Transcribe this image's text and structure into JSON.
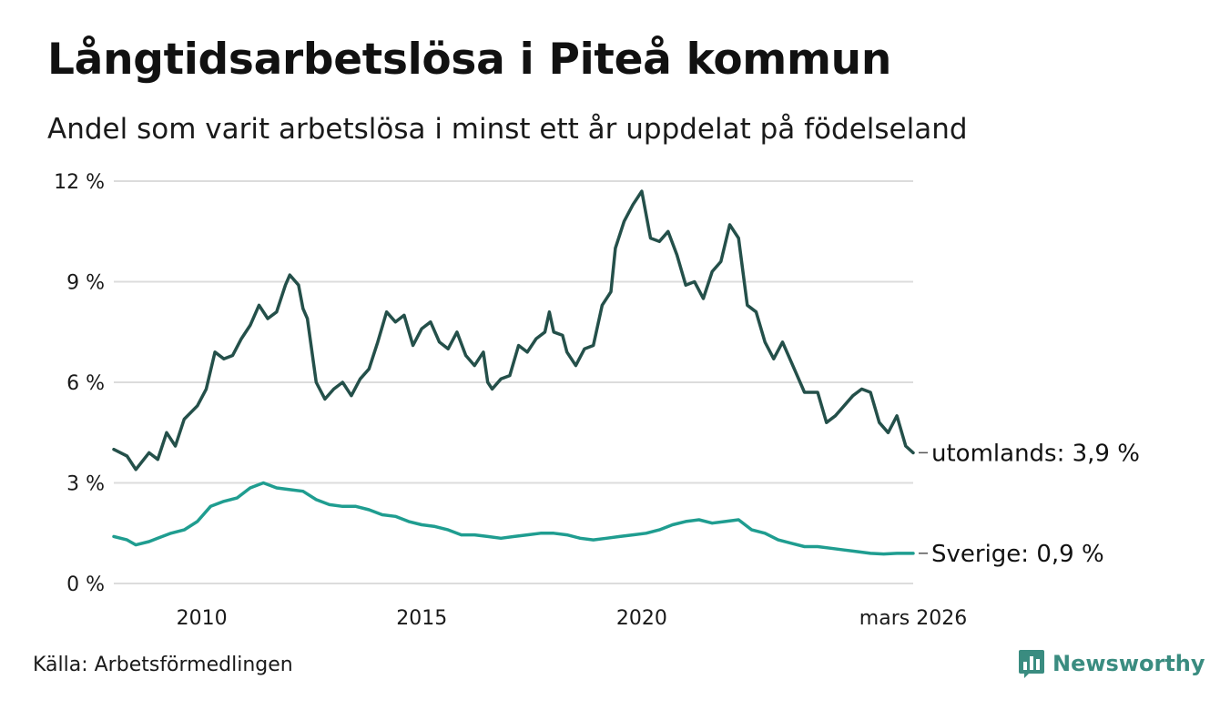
{
  "header": {
    "title": "Långtidsarbetslösa i Piteå kommun",
    "subtitle": "Andel som varit arbetslösa i minst ett år uppdelat på födelseland"
  },
  "footer": {
    "source": "Källa: Arbetsförmedlingen",
    "brand": "Newsworthy"
  },
  "colors": {
    "utomlands": "#24504a",
    "sverige": "#1f9d90",
    "grid": "#dcdcdc",
    "brand": "#3a8c80"
  },
  "chart_data": {
    "type": "line",
    "title": "Långtidsarbetslösa i Piteå kommun",
    "subtitle": "Andel som varit arbetslösa i minst ett år uppdelat på födelseland",
    "xlabel": "",
    "ylabel": "",
    "ylim": [
      0,
      12
    ],
    "xlim": [
      2008.0,
      2026.17
    ],
    "yticks": [
      0,
      3,
      6,
      9,
      12
    ],
    "ytick_labels": [
      "0 %",
      "3 %",
      "6 %",
      "9 %",
      "12 %"
    ],
    "xticks": [
      2010,
      2015,
      2020,
      2026.17
    ],
    "xtick_labels": [
      "2010",
      "2015",
      "2020",
      "mars 2026"
    ],
    "grid": true,
    "series": [
      {
        "name": "utomlands",
        "end_label": "utomlands: 3,9 %",
        "points": [
          [
            2008.0,
            4.0
          ],
          [
            2008.3,
            3.8
          ],
          [
            2008.5,
            3.4
          ],
          [
            2008.8,
            3.9
          ],
          [
            2009.0,
            3.7
          ],
          [
            2009.2,
            4.5
          ],
          [
            2009.4,
            4.1
          ],
          [
            2009.6,
            4.9
          ],
          [
            2009.9,
            5.3
          ],
          [
            2010.1,
            5.8
          ],
          [
            2010.3,
            6.9
          ],
          [
            2010.5,
            6.7
          ],
          [
            2010.7,
            6.8
          ],
          [
            2010.9,
            7.3
          ],
          [
            2011.1,
            7.7
          ],
          [
            2011.3,
            8.3
          ],
          [
            2011.5,
            7.9
          ],
          [
            2011.7,
            8.1
          ],
          [
            2011.9,
            8.9
          ],
          [
            2012.0,
            9.2
          ],
          [
            2012.2,
            8.9
          ],
          [
            2012.3,
            8.2
          ],
          [
            2012.4,
            7.9
          ],
          [
            2012.6,
            6.0
          ],
          [
            2012.8,
            5.5
          ],
          [
            2013.0,
            5.8
          ],
          [
            2013.2,
            6.0
          ],
          [
            2013.4,
            5.6
          ],
          [
            2013.6,
            6.1
          ],
          [
            2013.8,
            6.4
          ],
          [
            2014.0,
            7.2
          ],
          [
            2014.2,
            8.1
          ],
          [
            2014.4,
            7.8
          ],
          [
            2014.6,
            8.0
          ],
          [
            2014.8,
            7.1
          ],
          [
            2015.0,
            7.6
          ],
          [
            2015.2,
            7.8
          ],
          [
            2015.4,
            7.2
          ],
          [
            2015.6,
            7.0
          ],
          [
            2015.8,
            7.5
          ],
          [
            2016.0,
            6.8
          ],
          [
            2016.2,
            6.5
          ],
          [
            2016.4,
            6.9
          ],
          [
            2016.5,
            6.0
          ],
          [
            2016.6,
            5.8
          ],
          [
            2016.8,
            6.1
          ],
          [
            2017.0,
            6.2
          ],
          [
            2017.2,
            7.1
          ],
          [
            2017.4,
            6.9
          ],
          [
            2017.6,
            7.3
          ],
          [
            2017.8,
            7.5
          ],
          [
            2017.9,
            8.1
          ],
          [
            2018.0,
            7.5
          ],
          [
            2018.2,
            7.4
          ],
          [
            2018.3,
            6.9
          ],
          [
            2018.5,
            6.5
          ],
          [
            2018.7,
            7.0
          ],
          [
            2018.9,
            7.1
          ],
          [
            2019.1,
            8.3
          ],
          [
            2019.3,
            8.7
          ],
          [
            2019.4,
            10.0
          ],
          [
            2019.6,
            10.8
          ],
          [
            2019.8,
            11.3
          ],
          [
            2020.0,
            11.7
          ],
          [
            2020.2,
            10.3
          ],
          [
            2020.4,
            10.2
          ],
          [
            2020.6,
            10.5
          ],
          [
            2020.8,
            9.8
          ],
          [
            2021.0,
            8.9
          ],
          [
            2021.2,
            9.0
          ],
          [
            2021.4,
            8.5
          ],
          [
            2021.6,
            9.3
          ],
          [
            2021.8,
            9.6
          ],
          [
            2022.0,
            10.7
          ],
          [
            2022.2,
            10.3
          ],
          [
            2022.4,
            8.3
          ],
          [
            2022.6,
            8.1
          ],
          [
            2022.8,
            7.2
          ],
          [
            2023.0,
            6.7
          ],
          [
            2023.2,
            7.2
          ],
          [
            2023.5,
            6.3
          ],
          [
            2023.7,
            5.7
          ],
          [
            2024.0,
            5.7
          ],
          [
            2024.2,
            4.8
          ],
          [
            2024.4,
            5.0
          ],
          [
            2024.6,
            5.3
          ],
          [
            2024.8,
            5.6
          ],
          [
            2025.0,
            5.8
          ],
          [
            2025.2,
            5.7
          ],
          [
            2025.4,
            4.8
          ],
          [
            2025.6,
            4.5
          ],
          [
            2025.8,
            5.0
          ],
          [
            2026.0,
            4.1
          ],
          [
            2026.17,
            3.9
          ]
        ]
      },
      {
        "name": "Sverige",
        "end_label": "Sverige: 0,9 %",
        "points": [
          [
            2008.0,
            1.4
          ],
          [
            2008.3,
            1.3
          ],
          [
            2008.5,
            1.15
          ],
          [
            2008.8,
            1.25
          ],
          [
            2009.0,
            1.35
          ],
          [
            2009.3,
            1.5
          ],
          [
            2009.6,
            1.6
          ],
          [
            2009.9,
            1.85
          ],
          [
            2010.2,
            2.3
          ],
          [
            2010.5,
            2.45
          ],
          [
            2010.8,
            2.55
          ],
          [
            2011.1,
            2.85
          ],
          [
            2011.4,
            3.0
          ],
          [
            2011.7,
            2.85
          ],
          [
            2012.0,
            2.8
          ],
          [
            2012.3,
            2.75
          ],
          [
            2012.6,
            2.5
          ],
          [
            2012.9,
            2.35
          ],
          [
            2013.2,
            2.3
          ],
          [
            2013.5,
            2.3
          ],
          [
            2013.8,
            2.2
          ],
          [
            2014.1,
            2.05
          ],
          [
            2014.4,
            2.0
          ],
          [
            2014.7,
            1.85
          ],
          [
            2015.0,
            1.75
          ],
          [
            2015.3,
            1.7
          ],
          [
            2015.6,
            1.6
          ],
          [
            2015.9,
            1.45
          ],
          [
            2016.2,
            1.45
          ],
          [
            2016.5,
            1.4
          ],
          [
            2016.8,
            1.35
          ],
          [
            2017.1,
            1.4
          ],
          [
            2017.4,
            1.45
          ],
          [
            2017.7,
            1.5
          ],
          [
            2018.0,
            1.5
          ],
          [
            2018.3,
            1.45
          ],
          [
            2018.6,
            1.35
          ],
          [
            2018.9,
            1.3
          ],
          [
            2019.2,
            1.35
          ],
          [
            2019.5,
            1.4
          ],
          [
            2019.8,
            1.45
          ],
          [
            2020.1,
            1.5
          ],
          [
            2020.4,
            1.6
          ],
          [
            2020.7,
            1.75
          ],
          [
            2021.0,
            1.85
          ],
          [
            2021.3,
            1.9
          ],
          [
            2021.6,
            1.8
          ],
          [
            2021.9,
            1.85
          ],
          [
            2022.2,
            1.9
          ],
          [
            2022.5,
            1.6
          ],
          [
            2022.8,
            1.5
          ],
          [
            2023.1,
            1.3
          ],
          [
            2023.4,
            1.2
          ],
          [
            2023.7,
            1.1
          ],
          [
            2024.0,
            1.1
          ],
          [
            2024.3,
            1.05
          ],
          [
            2024.6,
            1.0
          ],
          [
            2024.9,
            0.95
          ],
          [
            2025.2,
            0.9
          ],
          [
            2025.5,
            0.88
          ],
          [
            2025.8,
            0.9
          ],
          [
            2026.17,
            0.9
          ]
        ]
      }
    ]
  }
}
